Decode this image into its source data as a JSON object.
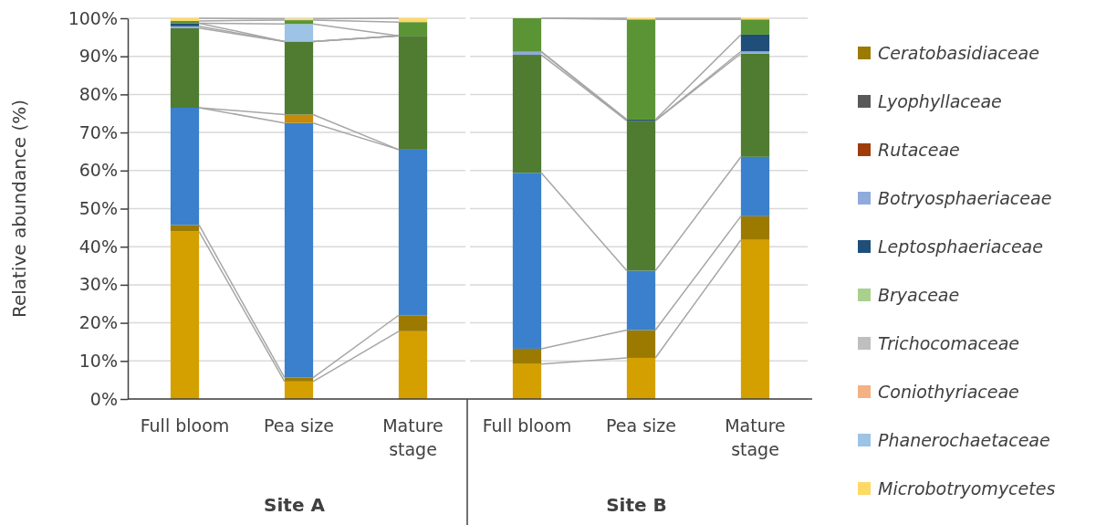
{
  "chart_data": [
    {
      "type": "bar",
      "stacked": true,
      "categories": [
        "Full bloom",
        "Pea size",
        "Mature stage"
      ],
      "xlabel": "Site A",
      "ylabel": "Relative abundance (%)",
      "ylim": [
        0,
        100
      ],
      "yticks": [
        {
          "value": 0,
          "label": "0%"
        },
        {
          "value": 10,
          "label": "10%"
        },
        {
          "value": 20,
          "label": "20%"
        },
        {
          "value": 30,
          "label": "30%"
        },
        {
          "value": 40,
          "label": "40%"
        },
        {
          "value": 50,
          "label": "50%"
        },
        {
          "value": 60,
          "label": "60%"
        },
        {
          "value": 70,
          "label": "70%"
        },
        {
          "value": 80,
          "label": "80%"
        },
        {
          "value": 90,
          "label": "90%"
        },
        {
          "value": 100,
          "label": "100%"
        }
      ],
      "grid": "y",
      "series": [
        {
          "color": "#d4a000",
          "values": [
            44,
            4.6,
            17.8
          ]
        },
        {
          "color": "#9c7a00",
          "values": [
            1.7,
            1.0,
            4.2
          ]
        },
        {
          "color": "#3a80cc",
          "values": [
            30.8,
            66.9,
            43.5
          ]
        },
        {
          "color": "#c88a0a",
          "values": [
            0,
            2.2,
            0
          ]
        },
        {
          "color": "#4f7c31",
          "values": [
            20.9,
            19.2,
            29.9
          ]
        },
        {
          "color": "#8faadc",
          "values": [
            0.5,
            0,
            0
          ]
        },
        {
          "color": "#1f4e79",
          "values": [
            0.8,
            0,
            0
          ]
        },
        {
          "color": "#9dc3e6",
          "values": [
            0,
            4.6,
            0
          ]
        },
        {
          "color": "#5b9434",
          "values": [
            0.6,
            1.0,
            3.6
          ]
        },
        {
          "color": "#ffd966",
          "values": [
            0.7,
            0.4,
            1.0
          ]
        }
      ]
    },
    {
      "type": "bar",
      "stacked": true,
      "categories": [
        "Full bloom",
        "Pea size",
        "Mature stage"
      ],
      "xlabel": "Site B",
      "ylim": [
        0,
        100
      ],
      "yticks": [
        0,
        10,
        20,
        30,
        40,
        50,
        60,
        70,
        80,
        90,
        100
      ],
      "grid": "y",
      "legend": "right",
      "tick_labels": "x",
      "series": [
        {
          "color": "#d4a000",
          "values": [
            9.2,
            10.8,
            41.8
          ]
        },
        {
          "name": "Ceratobasidiaceae",
          "color": "#9c7a00",
          "values": [
            4.0,
            7.3,
            6.2
          ]
        },
        {
          "name": "Lyophyllaceae",
          "color": "#595959",
          "values": [
            0,
            0,
            0
          ]
        },
        {
          "name": "Rutaceae",
          "color": "#9e3d0a",
          "values": [
            0,
            0,
            0
          ]
        },
        {
          "color": "#3a80cc",
          "values": [
            46.2,
            15.6,
            15.6
          ]
        },
        {
          "color": "#c88a0a",
          "values": [
            0,
            0,
            0
          ]
        },
        {
          "color": "#4f7c31",
          "values": [
            31.0,
            39.4,
            27.1
          ]
        },
        {
          "name": "Botryosphaeriaceae",
          "color": "#8faadc",
          "values": [
            0.8,
            0,
            0.6
          ]
        },
        {
          "name": "Leptosphaeriaceae",
          "color": "#1f4e79",
          "values": [
            0,
            0.3,
            4.4
          ]
        },
        {
          "name": "Bryaceae",
          "color": "#a9d18e",
          "values": [
            0,
            0,
            0
          ]
        },
        {
          "name": "Trichocomaceae",
          "color": "#bfbfbf",
          "values": [
            0,
            0,
            0
          ]
        },
        {
          "name": "Coniothyriaceae",
          "color": "#f4b183",
          "values": [
            0,
            0,
            0
          ]
        },
        {
          "name": "Phanerochaetaceae",
          "color": "#9dc3e6",
          "values": [
            0,
            0,
            0
          ]
        },
        {
          "color": "#5b9434",
          "values": [
            8.8,
            26.3,
            4.0
          ]
        },
        {
          "name": "Microbotryomycetes",
          "color": "#ffd966",
          "values": [
            0,
            0.3,
            0.3
          ]
        }
      ]
    }
  ]
}
